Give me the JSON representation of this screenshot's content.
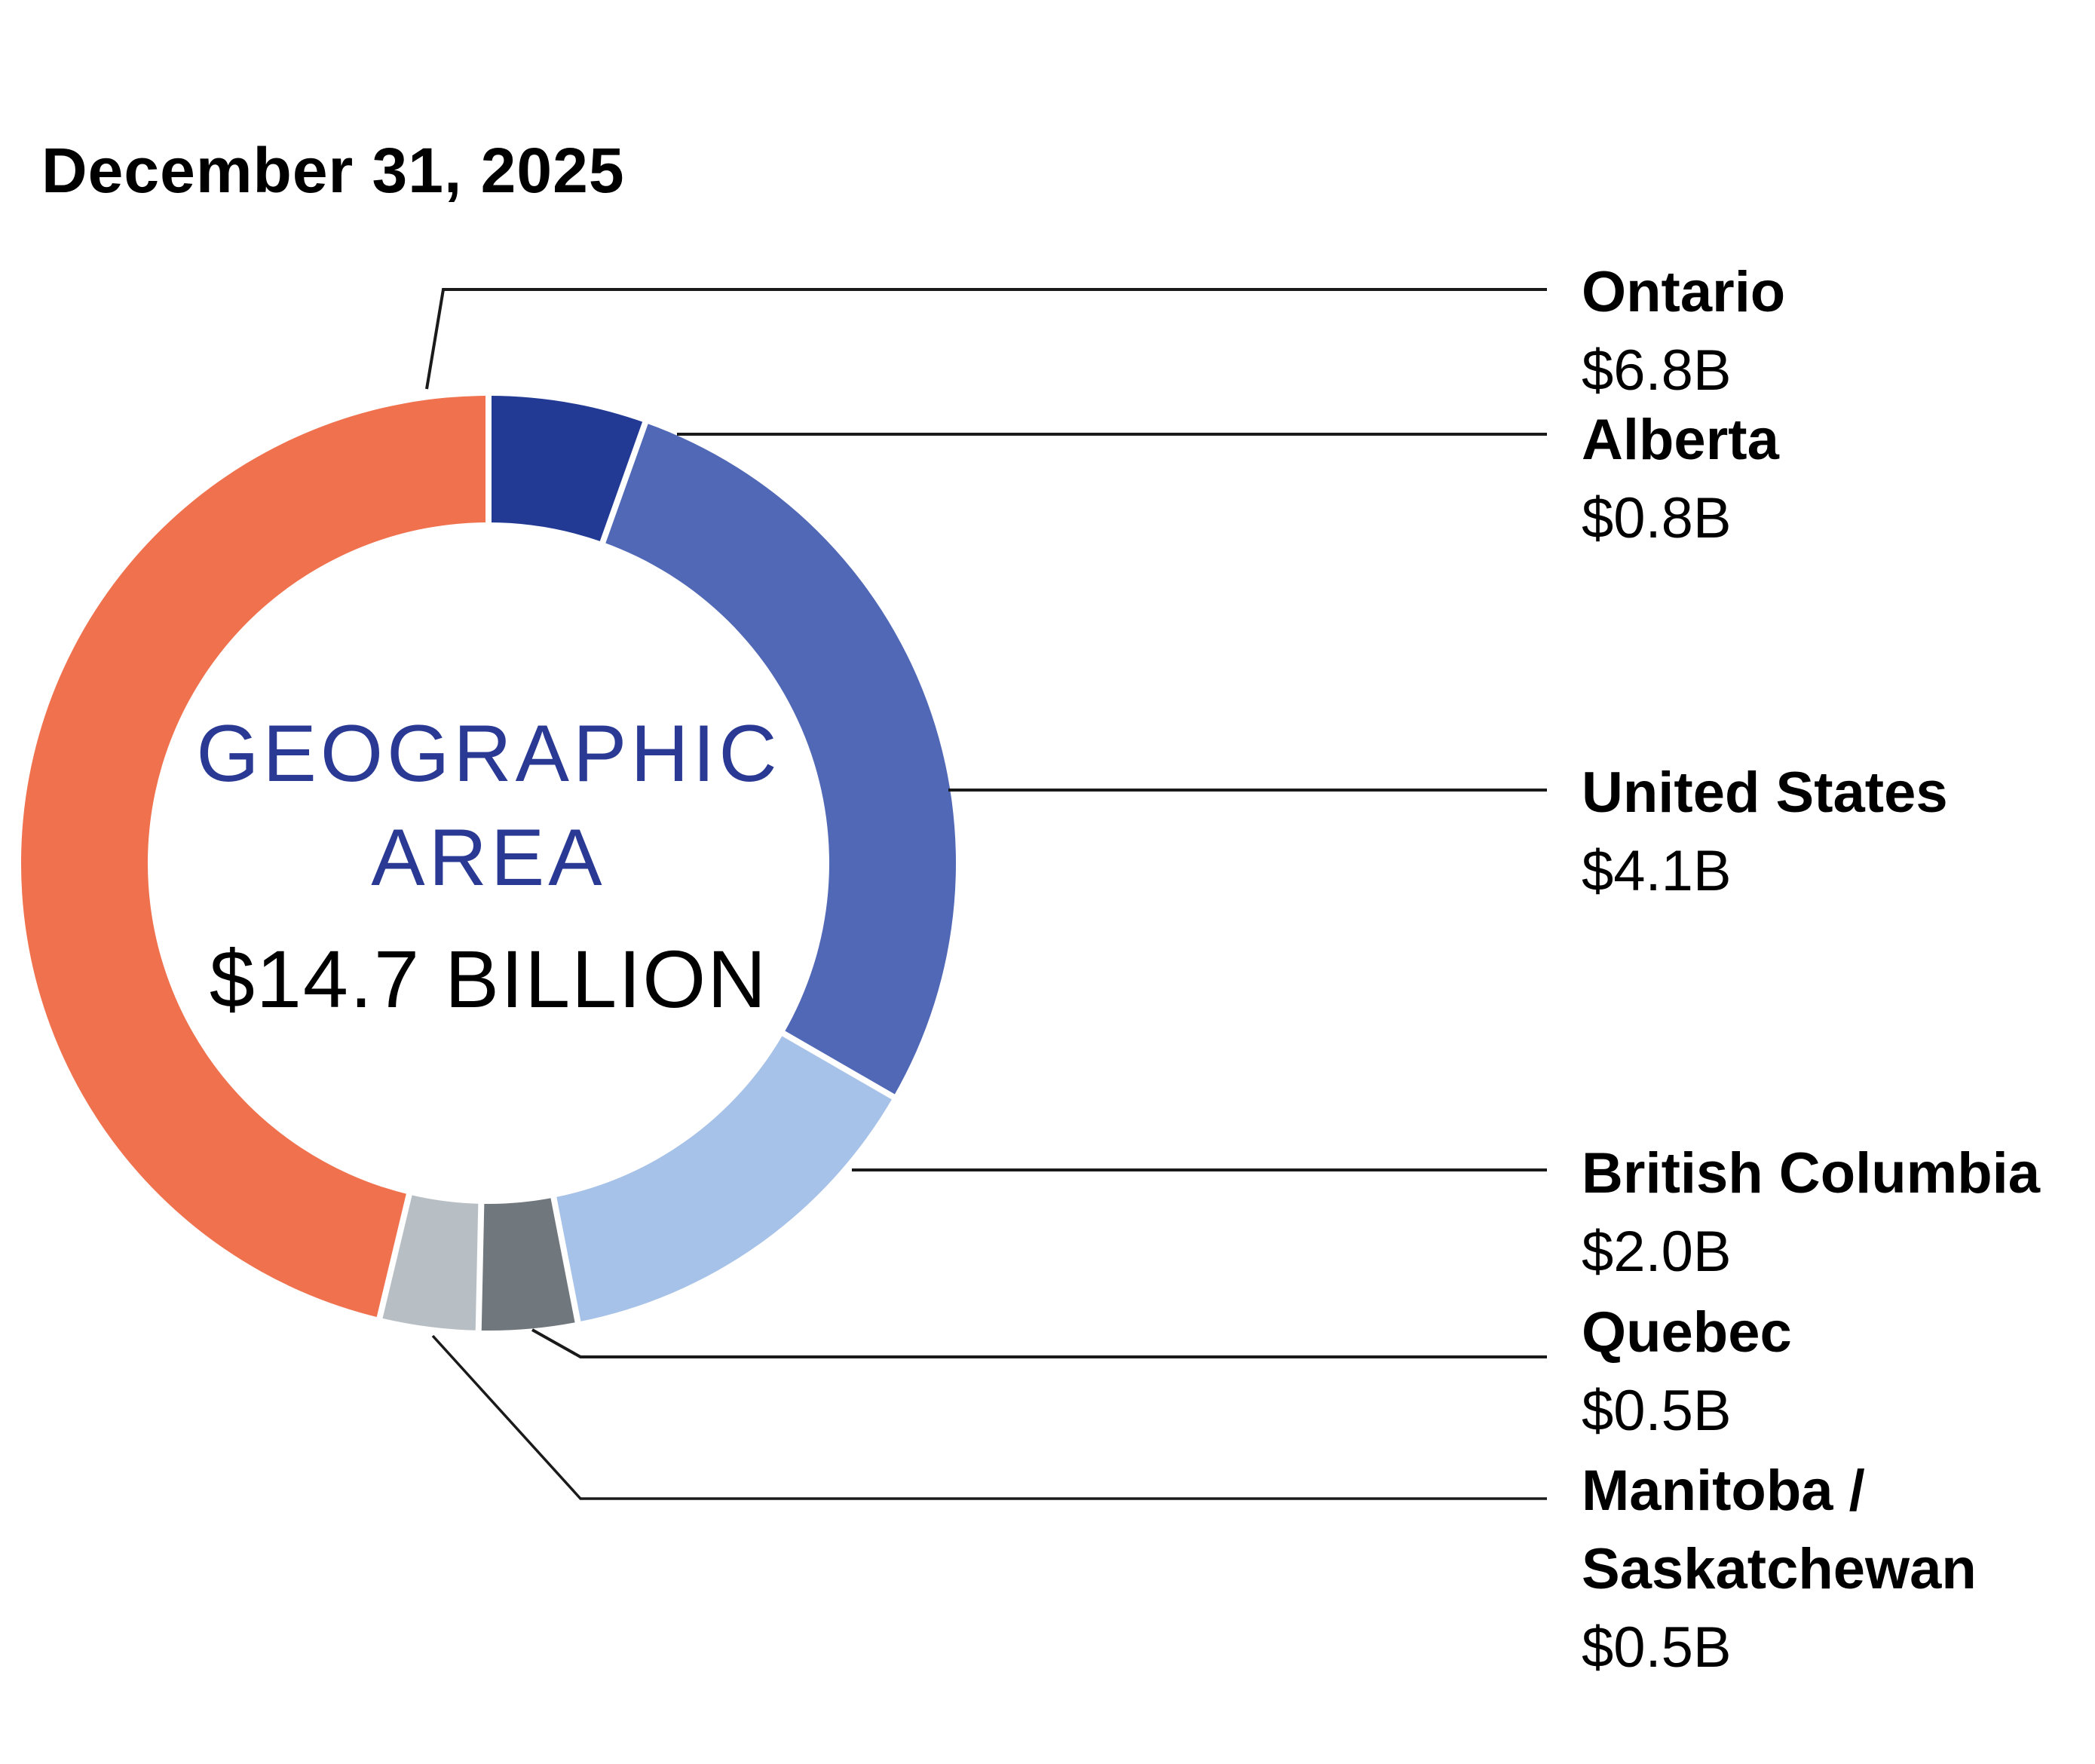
{
  "title": "December 31, 2025",
  "donut_center": {
    "line1": "GEOGRAPHIC",
    "line2": "AREA",
    "total": "$14.7 BILLION"
  },
  "callouts": [
    {
      "name": "Ontario",
      "value": "$6.8B"
    },
    {
      "name": "Alberta",
      "value": "$0.8B"
    },
    {
      "name": "United States",
      "value": "$4.1B"
    },
    {
      "name": "British Columbia",
      "value": "$2.0B"
    },
    {
      "name": "Quebec",
      "value": "$0.5B"
    },
    {
      "name": "Manitoba / Saskatchewan",
      "value": "$0.5B"
    }
  ],
  "chart_data": {
    "type": "pie",
    "subtype": "donut",
    "title": "GEOGRAPHIC AREA",
    "date_label": "December 31, 2025",
    "total_label": "$14.7 BILLION",
    "total_value_billions": 14.7,
    "legend_position": "right-callouts",
    "donut": {
      "start_angle_deg": 0,
      "clockwise": true,
      "hole_ratio": 0.73,
      "separator_color": "#FFFFFF"
    },
    "segments": [
      {
        "label": "Alberta",
        "value_billions": 0.8,
        "display_value": "$0.8B",
        "color": "#223A93"
      },
      {
        "label": "United States",
        "value_billions": 4.1,
        "display_value": "$4.1B",
        "color": "#5068B6"
      },
      {
        "label": "British Columbia",
        "value_billions": 2.0,
        "display_value": "$2.0B",
        "color": "#A7C2E8"
      },
      {
        "label": "Quebec",
        "value_billions": 0.5,
        "display_value": "$0.5B",
        "color": "#70787D"
      },
      {
        "label": "Manitoba / Saskatchewan",
        "value_billions": 0.5,
        "display_value": "$0.5B",
        "color": "#B8BFC4"
      },
      {
        "label": "Ontario",
        "value_billions": 6.8,
        "display_value": "$6.8B",
        "color": "#F0714E"
      }
    ],
    "accent_text_color": "#2A3A94",
    "leader_line_color": "#1A1A1A"
  }
}
